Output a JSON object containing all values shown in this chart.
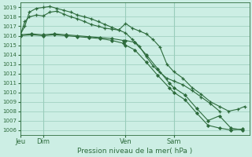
{
  "bg_color": "#cceee4",
  "grid_color": "#99ccbb",
  "line_color": "#2d6b3c",
  "xlabel": "Pression niveau de la mer( hPa )",
  "ylim": [
    1005.5,
    1019.5
  ],
  "yticks": [
    1006,
    1007,
    1008,
    1009,
    1010,
    1011,
    1012,
    1013,
    1014,
    1015,
    1016,
    1017,
    1018,
    1019
  ],
  "xtick_labels": [
    "Jeu",
    "Dim",
    "Ven",
    "Sam"
  ],
  "xtick_positions": [
    0,
    10,
    46,
    67
  ],
  "xlim": [
    0,
    100
  ],
  "vlines": [
    0,
    10,
    46,
    67
  ],
  "lines": [
    {
      "x": [
        0,
        2,
        4,
        7,
        10,
        13,
        16,
        19,
        22,
        25,
        28,
        31,
        34,
        37,
        40,
        43,
        46,
        49,
        52,
        55,
        58,
        61,
        64,
        67,
        71,
        75,
        79,
        83,
        87,
        91,
        95,
        98
      ],
      "y": [
        1016.0,
        1017.5,
        1018.0,
        1018.2,
        1018.1,
        1018.5,
        1018.6,
        1018.3,
        1018.0,
        1017.8,
        1017.5,
        1017.2,
        1017.0,
        1016.8,
        1016.7,
        1016.6,
        1017.3,
        1016.8,
        1016.5,
        1016.2,
        1015.6,
        1014.8,
        1013.0,
        1012.2,
        1011.5,
        1010.5,
        1009.8,
        1009.0,
        1008.5,
        1008.0,
        1008.2,
        1008.5
      ],
      "marker": "+"
    },
    {
      "x": [
        0,
        2,
        4,
        7,
        10,
        13,
        16,
        19,
        22,
        25,
        28,
        31,
        34,
        37,
        40,
        43,
        46,
        49,
        52,
        55,
        58,
        61,
        64,
        67,
        71,
        75,
        79,
        83,
        87
      ],
      "y": [
        1016.1,
        1017.0,
        1018.5,
        1018.9,
        1019.0,
        1019.1,
        1018.9,
        1018.7,
        1018.5,
        1018.2,
        1018.0,
        1017.8,
        1017.5,
        1017.2,
        1016.9,
        1016.6,
        1016.3,
        1015.6,
        1014.9,
        1013.8,
        1012.8,
        1012.1,
        1011.5,
        1011.2,
        1010.8,
        1010.2,
        1009.5,
        1008.8,
        1008.0
      ],
      "marker": "+"
    },
    {
      "x": [
        0,
        5,
        10,
        15,
        20,
        25,
        30,
        35,
        40,
        45,
        46,
        50,
        55,
        60,
        65,
        67,
        72,
        77,
        82,
        87,
        92,
        97
      ],
      "y": [
        1016.1,
        1016.2,
        1016.1,
        1016.2,
        1016.1,
        1016.0,
        1015.9,
        1015.8,
        1015.7,
        1015.5,
        1015.5,
        1015.3,
        1014.0,
        1012.5,
        1011.0,
        1010.5,
        1009.7,
        1008.3,
        1007.0,
        1007.5,
        1006.2,
        1006.0
      ],
      "marker": "D"
    },
    {
      "x": [
        0,
        5,
        10,
        15,
        20,
        25,
        30,
        35,
        40,
        45,
        46,
        50,
        55,
        60,
        65,
        67,
        72,
        77,
        82,
        87,
        92,
        97
      ],
      "y": [
        1016.0,
        1016.1,
        1016.0,
        1016.1,
        1016.0,
        1015.9,
        1015.8,
        1015.7,
        1015.5,
        1015.2,
        1015.0,
        1014.5,
        1013.2,
        1011.8,
        1010.5,
        1010.0,
        1009.2,
        1007.8,
        1006.5,
        1006.2,
        1006.0,
        1006.1
      ],
      "marker": "D"
    }
  ]
}
